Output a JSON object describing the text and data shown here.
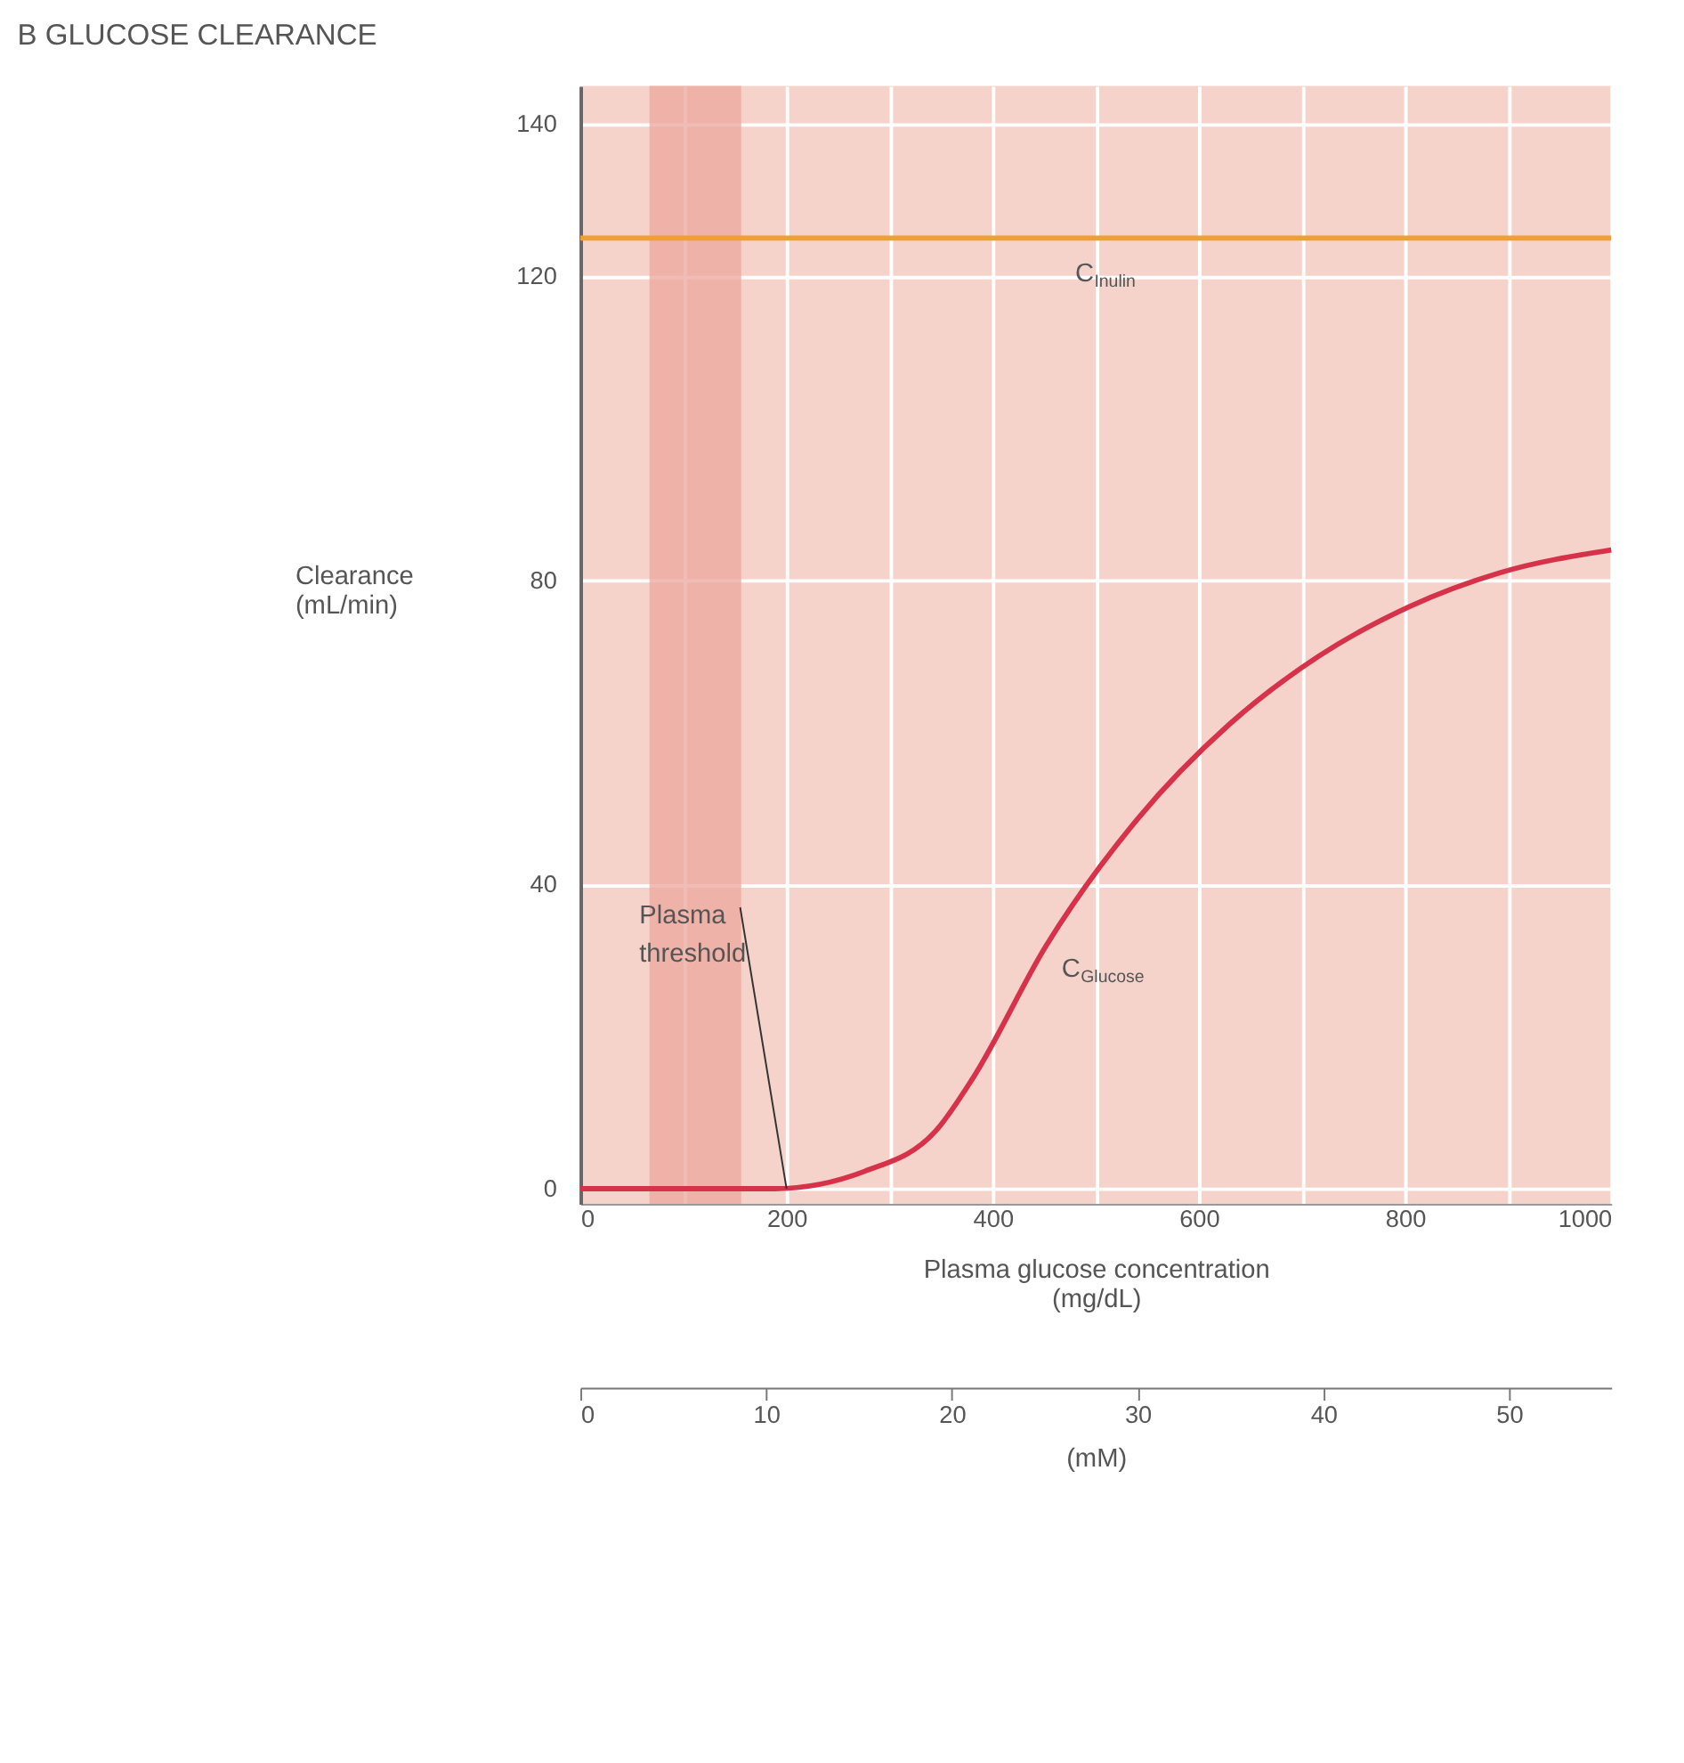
{
  "chart_data": {
    "type": "line",
    "title": "B   GLUCOSE CLEARANCE",
    "xlabel": "Plasma glucose concentration\n(mg/dL)",
    "ylabel": "Clearance\n(mL/min)",
    "x2label": "(mM)",
    "series": [
      {
        "color": "#d6324a",
        "x": [
          0,
          188,
          276,
          346,
          381,
          452,
          541,
          629,
          716,
          805,
          892,
          1000
        ],
        "values": [
          0,
          0,
          2.3,
          7.8,
          14.6,
          32,
          48.7,
          61,
          70,
          76.6,
          81,
          84
        ]
      },
      {
        "color": "#f0a030",
        "x": [
          0,
          1000
        ],
        "values": [
          125,
          125
        ]
      }
    ],
    "bands": [
      {
        "axis": "x",
        "from": 67,
        "to": 156,
        "color": "#eba79e"
      }
    ],
    "annotations": [
      {
        "text": "C$_{Inulin}$",
        "x": 480,
        "y": 125
      },
      {
        "text": "C$_{Glucose}$",
        "x": 440,
        "y": 29
      },
      {
        "text": "Plasma\nthreshold",
        "x": 200,
        "y": 0
      }
    ],
    "xlim": [
      0,
      1000
    ],
    "xticks": [
      0,
      {
        "value": 100,
        "label": null
      },
      200,
      {
        "value": 300,
        "label": null
      },
      400,
      {
        "value": 500,
        "label": null
      },
      600,
      {
        "value": 700,
        "label": null
      },
      800,
      {
        "value": 900,
        "label": null
      },
      1000
    ],
    "ylim": [
      -2,
      145
    ],
    "yticks": [
      0,
      40,
      80,
      120,
      140
    ],
    "x2lim": [
      0,
      55.5
    ],
    "x2ticks": [
      0,
      10,
      20,
      30,
      40,
      50
    ],
    "grid": true,
    "marker": "none",
    "line_style": "solid"
  }
}
